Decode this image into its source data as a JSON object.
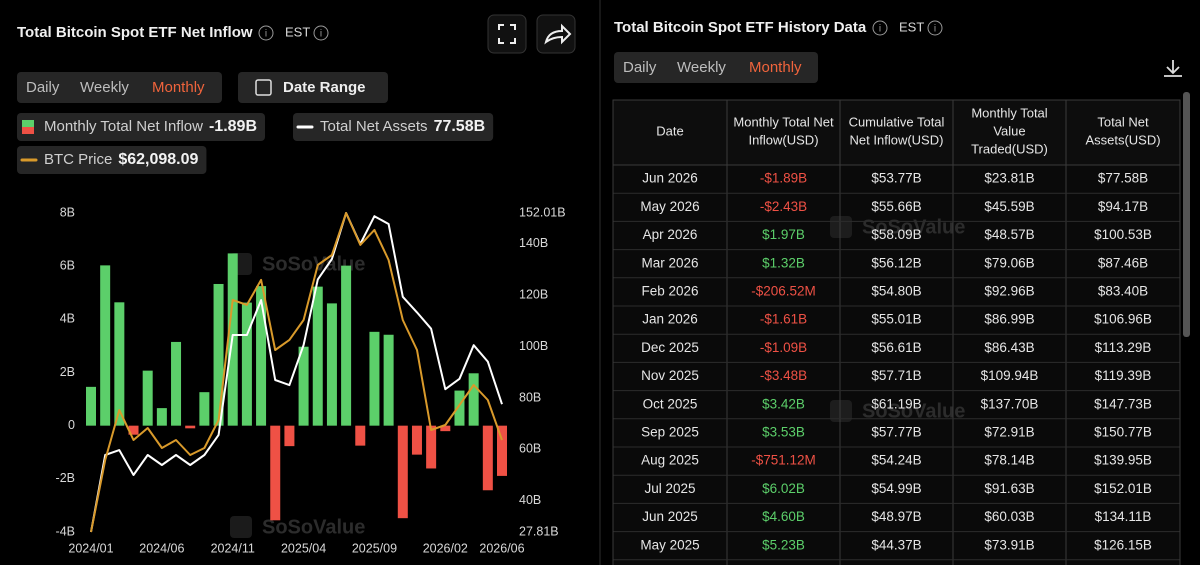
{
  "chart_data": {
    "type": "bar-line",
    "title": "Total Bitcoin Spot ETF Net Inflow",
    "timezone": "EST",
    "tabs": [
      "Daily",
      "Weekly",
      "Monthly"
    ],
    "active_tab": 2,
    "date_range": "Date Range",
    "legend_values": [
      "-1.89B",
      "77.58B",
      "$62,098.09"
    ],
    "watermark": "SoSoValue",
    "categories": [
      "2024/01",
      null,
      null,
      null,
      null,
      "2024/06",
      null,
      null,
      null,
      null,
      "2024/11",
      null,
      null,
      null,
      null,
      "2025/04",
      null,
      null,
      null,
      null,
      "2025/09",
      null,
      null,
      null,
      null,
      "2026/02",
      null,
      null,
      null,
      "2026/06"
    ],
    "ylim": [
      -4,
      8
    ],
    "yticks": [
      {
        "value": -4,
        "label": "-4B"
      },
      {
        "value": -2,
        "label": "-2B"
      },
      0,
      {
        "value": 2,
        "label": "2B"
      },
      {
        "value": 4,
        "label": "4B"
      },
      {
        "value": 6,
        "label": "6B"
      },
      {
        "value": 8,
        "label": "8B"
      }
    ],
    "y2lim": [
      27.81,
      152.01
    ],
    "y2ticks": [
      {
        "value": 27.81,
        "label": "27.81B"
      },
      {
        "value": 40,
        "label": "40B"
      },
      {
        "value": 60,
        "label": "60B"
      },
      {
        "value": 80,
        "label": "80B"
      },
      {
        "value": 100,
        "label": "100B"
      },
      {
        "value": 120,
        "label": "120B"
      },
      {
        "value": 140,
        "label": "140B"
      },
      {
        "value": 152.01,
        "label": "152.01B"
      }
    ],
    "y3lim": [
      42500,
      110500
    ],
    "grid": false,
    "series": [
      {
        "name": "Monthly Total Net Inflow",
        "type": "bar",
        "color": "#5ccf6a",
        "negative_color": "#ef5145",
        "values": [
          1.46,
          6.03,
          4.64,
          -0.34,
          2.07,
          0.66,
          3.15,
          -0.1,
          1.26,
          5.33,
          6.48,
          4.63,
          5.25,
          -3.56,
          -0.77,
          2.97,
          5.23,
          4.6,
          6.02,
          -0.75112,
          3.53,
          3.42,
          -3.48,
          -1.09,
          -1.61,
          -0.20652,
          1.32,
          1.97,
          -2.43,
          -1.89
        ]
      },
      {
        "name": "Total Net Assets",
        "type": "line",
        "color": "#ffffff",
        "axis": "y2",
        "values": [
          27.81,
          57.8,
          59.7,
          50,
          57.8,
          53.9,
          57.8,
          53.9,
          57.8,
          65.6,
          104.5,
          104.5,
          118.1,
          87,
          85,
          100.6,
          126.15,
          134.11,
          152.01,
          139.95,
          150.77,
          147.73,
          119.39,
          113.29,
          106.96,
          83.4,
          87.46,
          100.53,
          94.17,
          77.58
        ]
      },
      {
        "name": "BTC Price",
        "type": "line",
        "color": "#d99a2b",
        "axis": "y3",
        "values": [
          42500,
          57850,
          68510,
          62110,
          64670,
          60410,
          62110,
          58920,
          60410,
          66380,
          91960,
          90900,
          96230,
          81300,
          83440,
          87700,
          99420,
          101550,
          110500,
          103690,
          106890,
          100490,
          87700,
          81300,
          64250,
          65310,
          69580,
          73840,
          70640,
          62100
        ]
      }
    ]
  },
  "history": {
    "title": "Total Bitcoin Spot ETF History Data",
    "timezone": "EST",
    "tabs": [
      "Daily",
      "Weekly",
      "Monthly"
    ],
    "active_tab": 2
  },
  "table": {
    "headers": [
      "Date",
      "Monthly Total Net Inflow(USD)",
      "Cumulative Total Net Inflow(USD)",
      "Monthly Total Value Traded(USD)",
      "Total Net Assets(USD)"
    ],
    "rows": [
      [
        "Jun 2026",
        "-$1.89B",
        "$53.77B",
        "$23.81B",
        "$77.58B"
      ],
      [
        "May 2026",
        "-$2.43B",
        "$55.66B",
        "$45.59B",
        "$94.17B"
      ],
      [
        "Apr 2026",
        "$1.97B",
        "$58.09B",
        "$48.57B",
        "$100.53B"
      ],
      [
        "Mar 2026",
        "$1.32B",
        "$56.12B",
        "$79.06B",
        "$87.46B"
      ],
      [
        "Feb 2026",
        "-$206.52M",
        "$54.80B",
        "$92.96B",
        "$83.40B"
      ],
      [
        "Jan 2026",
        "-$1.61B",
        "$55.01B",
        "$86.99B",
        "$106.96B"
      ],
      [
        "Dec 2025",
        "-$1.09B",
        "$56.61B",
        "$86.43B",
        "$113.29B"
      ],
      [
        "Nov 2025",
        "-$3.48B",
        "$57.71B",
        "$109.94B",
        "$119.39B"
      ],
      [
        "Oct 2025",
        "$3.42B",
        "$61.19B",
        "$137.70B",
        "$147.73B"
      ],
      [
        "Sep 2025",
        "$3.53B",
        "$57.77B",
        "$72.91B",
        "$150.77B"
      ],
      [
        "Aug 2025",
        "-$751.12M",
        "$54.24B",
        "$78.14B",
        "$139.95B"
      ],
      [
        "Jul 2025",
        "$6.02B",
        "$54.99B",
        "$91.63B",
        "$152.01B"
      ],
      [
        "Jun 2025",
        "$4.60B",
        "$48.97B",
        "$60.03B",
        "$134.11B"
      ],
      [
        "May 2025",
        "$5.23B",
        "$44.37B",
        "$73.91B",
        "$126.15B"
      ]
    ]
  }
}
